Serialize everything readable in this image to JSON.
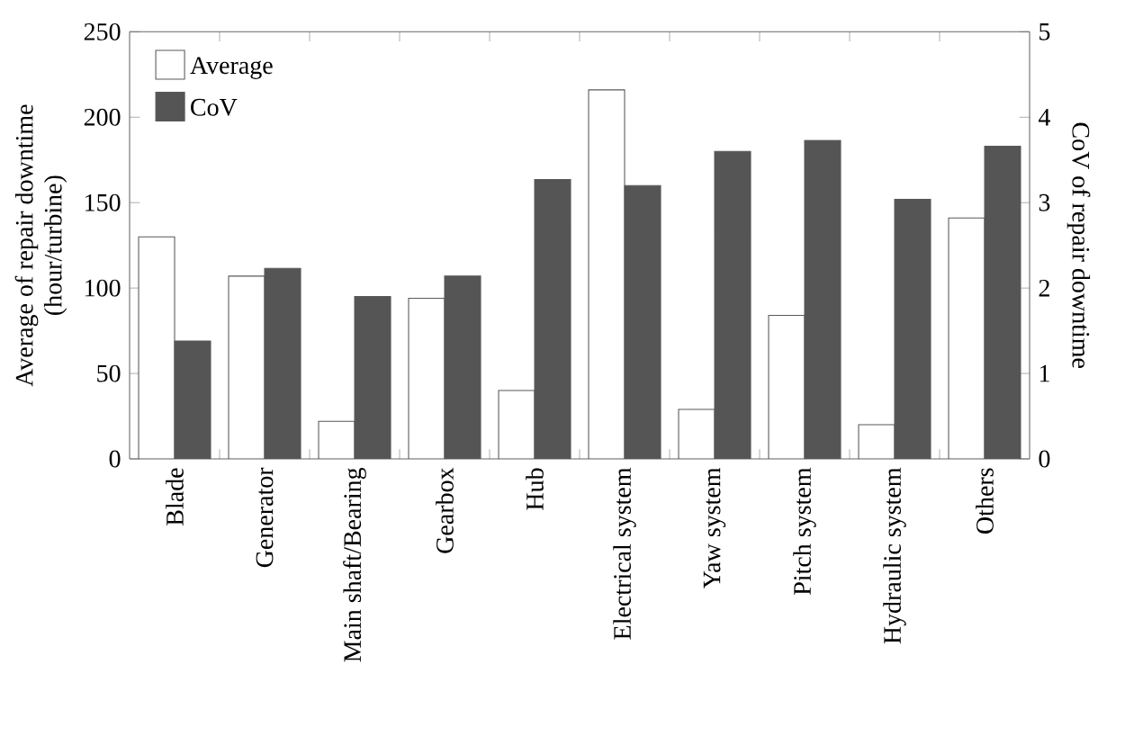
{
  "chart_data": {
    "type": "bar",
    "categories": [
      "Blade",
      "Generator",
      "Main shaft/Bearing",
      "Gearbox",
      "Hub",
      "Electrical system",
      "Yaw system",
      "Pitch system",
      "Hydraulic system",
      "Others"
    ],
    "ylabel": "Average of repair downtime\n(hour/turbine)",
    "y2label": "CoV of repair downtime",
    "series": [
      {
        "name": "Average",
        "color": "#ffffff",
        "values": [
          130,
          107,
          22,
          94,
          40,
          216,
          29,
          84,
          20,
          141
        ]
      },
      {
        "name": "CoV",
        "color": "#555555",
        "axis": "y2",
        "values": [
          1.38,
          2.23,
          1.9,
          2.14,
          3.27,
          3.2,
          3.6,
          3.73,
          3.04,
          3.66
        ]
      }
    ],
    "ylim": [
      0,
      250
    ],
    "yticks": [
      0,
      50,
      100,
      150,
      200,
      250
    ],
    "y2lim": [
      0,
      5
    ],
    "y2ticks": [
      0,
      1,
      2,
      3,
      4,
      5
    ],
    "legend": "top left"
  }
}
